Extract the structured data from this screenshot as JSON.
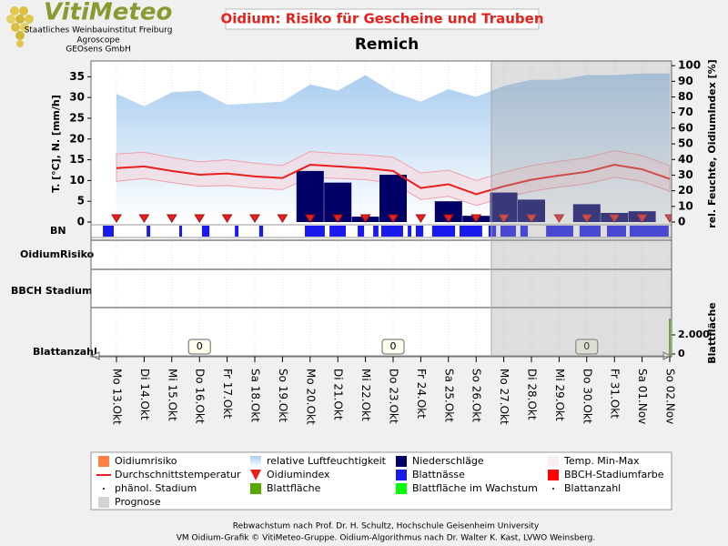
{
  "header": {
    "logo": "VitiMeteo",
    "institutes": [
      "Staatliches Weinbauinstitut Freiburg",
      "Agroscope",
      "GEOsens GmbH"
    ]
  },
  "chart_data": {
    "type": "combo",
    "title": "Oidium: Risiko für Gescheine und Trauben",
    "subtitle": "Remich",
    "ylabel": "T. [°C], N. [mm/h]",
    "y2label": "rel. Feuchte, OidiumIndex [%]",
    "categories": [
      "Mo 13.Okt",
      "Di 14.Okt",
      "Mi 15.Okt",
      "Do 16.Okt",
      "Fr 17.Okt",
      "Sa 18.Okt",
      "So 19.Okt",
      "Mo 20.Okt",
      "Di 21.Okt",
      "Mi 22.Okt",
      "Do 23.Okt",
      "Fr 24.Okt",
      "Sa 25.Okt",
      "So 26.Okt",
      "Mo 27.Okt",
      "Di 28.Okt",
      "Mi 29.Okt",
      "Do 30.Okt",
      "Fr 31.Okt",
      "Sa 01.Nov",
      "So 02.Nov"
    ],
    "ylim": [
      0,
      38.8
    ],
    "yticks": [
      0,
      5,
      10,
      15,
      20,
      25,
      30,
      35
    ],
    "y2lim": [
      0,
      103
    ],
    "y2ticks": [
      0,
      10,
      20,
      30,
      40,
      50,
      60,
      70,
      80,
      90,
      100
    ],
    "prognosis_start": 13.55,
    "series": [
      {
        "name": "relative Luftfeuchtigkeit",
        "kind": "area",
        "axis": "y2",
        "color": "#a9cdf0",
        "values": [
          82,
          74,
          83,
          84,
          75,
          76,
          77,
          88,
          84,
          94,
          83,
          77,
          85,
          80,
          87,
          91,
          91,
          94,
          94,
          95,
          95
        ]
      },
      {
        "name": "Temp. Min-Max",
        "kind": "band",
        "color": "#f6d6dc",
        "max": [
          16.4,
          16.8,
          15.5,
          14.5,
          15.0,
          14.2,
          13.6,
          17.0,
          16.5,
          16.2,
          15.6,
          11.8,
          12.5,
          10.0,
          12.0,
          13.6,
          14.6,
          15.5,
          17.2,
          16.0,
          13.6
        ],
        "min": [
          9.8,
          10.5,
          9.5,
          8.6,
          8.8,
          8.2,
          7.8,
          10.8,
          10.5,
          10.2,
          9.4,
          5.4,
          6.2,
          4.0,
          5.8,
          7.4,
          8.4,
          9.2,
          10.8,
          9.8,
          7.4
        ]
      },
      {
        "name": "Niederschläge",
        "kind": "bar",
        "color": "#000066",
        "values": [
          0,
          0,
          0,
          0,
          0,
          0,
          0,
          12.3,
          9.5,
          1.3,
          11.4,
          0,
          5.0,
          1.5,
          7.1,
          5.4,
          0,
          4.3,
          2.2,
          2.6,
          0
        ]
      },
      {
        "name": "Durchschnittstemperatur",
        "kind": "line",
        "color": "#e8201c",
        "values": [
          13.0,
          13.4,
          12.3,
          11.4,
          11.7,
          11.0,
          10.6,
          13.8,
          13.4,
          13.0,
          12.3,
          8.2,
          9.1,
          6.7,
          8.6,
          10.2,
          11.2,
          12.1,
          13.8,
          12.7,
          10.4
        ]
      },
      {
        "name": "Oidiumindex",
        "kind": "triangle",
        "axis": "y2",
        "color": "#e8201c",
        "values": [
          0,
          0,
          0,
          0,
          0,
          0,
          0,
          0,
          0,
          0,
          0,
          0,
          0,
          0,
          0,
          0,
          0,
          0,
          0,
          0,
          0
        ]
      }
    ],
    "bn_label": "BN",
    "bn_color": "#1a1aee",
    "bn_intervals": [
      [
        -0.49,
        -0.1
      ],
      [
        1.09,
        1.22
      ],
      [
        2.27,
        2.37
      ],
      [
        3.09,
        3.36
      ],
      [
        4.28,
        4.41
      ],
      [
        5.16,
        5.3
      ],
      [
        6.81,
        7.53
      ],
      [
        7.7,
        8.29
      ],
      [
        8.72,
        8.95
      ],
      [
        9.28,
        9.47
      ],
      [
        9.57,
        10.36
      ],
      [
        10.53,
        10.66
      ],
      [
        10.82,
        11.09
      ],
      [
        11.41,
        12.24
      ],
      [
        12.4,
        13.22
      ],
      [
        13.45,
        13.72
      ],
      [
        13.88,
        14.44
      ],
      [
        14.6,
        14.87
      ],
      [
        15.53,
        16.51
      ],
      [
        16.74,
        17.5
      ],
      [
        17.73,
        18.42
      ],
      [
        18.55,
        19.96
      ]
    ],
    "panels": [
      "OidiumRisiko",
      "BBCH Stadium"
    ],
    "blatt": {
      "label": "Blattanzahl",
      "axis_label": "Blattfläche",
      "ylim": [
        0,
        4760
      ],
      "yticks": [
        0,
        {
          "value": 2000,
          "label": "2.000"
        }
      ],
      "positions": [
        3,
        10,
        17
      ],
      "values": [
        0,
        0,
        0
      ]
    }
  },
  "legend": [
    {
      "label": "Oidiumrisiko",
      "kind": "square",
      "color": "#ff8040"
    },
    {
      "label": "relative Luftfeuchtigkeit",
      "kind": "gradient",
      "color": "#a9cdf0"
    },
    {
      "label": "Niederschläge",
      "kind": "square",
      "color": "#000066"
    },
    {
      "label": "Temp. Min-Max",
      "kind": "square",
      "color": "#f6eef2"
    },
    {
      "label": "Durchschnittstemperatur",
      "kind": "line",
      "color": "#e8201c"
    },
    {
      "label": "Oidiumindex",
      "kind": "triangle",
      "color": "#e8201c"
    },
    {
      "label": "Blattnässe",
      "kind": "square",
      "color": "#1a1aee"
    },
    {
      "label": "BBCH-Stadiumfarbe",
      "kind": "square",
      "color": "#ff0000"
    },
    {
      "label": "phänol. Stadium",
      "kind": "dot",
      "color": "#000000"
    },
    {
      "label": "Blattfläche",
      "kind": "square",
      "color": "#55aa00"
    },
    {
      "label": "Blattfläche im Wachstum",
      "kind": "square",
      "color": "#00ff00"
    },
    {
      "label": "Blattanzahl",
      "kind": "dot",
      "color": "#000000"
    },
    {
      "label": "Prognose",
      "kind": "square",
      "color": "#d4d4d4"
    }
  ],
  "footer": [
    "Rebwachstum nach Prof. Dr. H. Schultz, Hochschule Geisenheim University",
    "VM Oidium-Grafik © VitiMeteo-Gruppe. Oidium-Algorithmus nach Dr. Walter K. Kast, LVWO Weinsberg."
  ]
}
